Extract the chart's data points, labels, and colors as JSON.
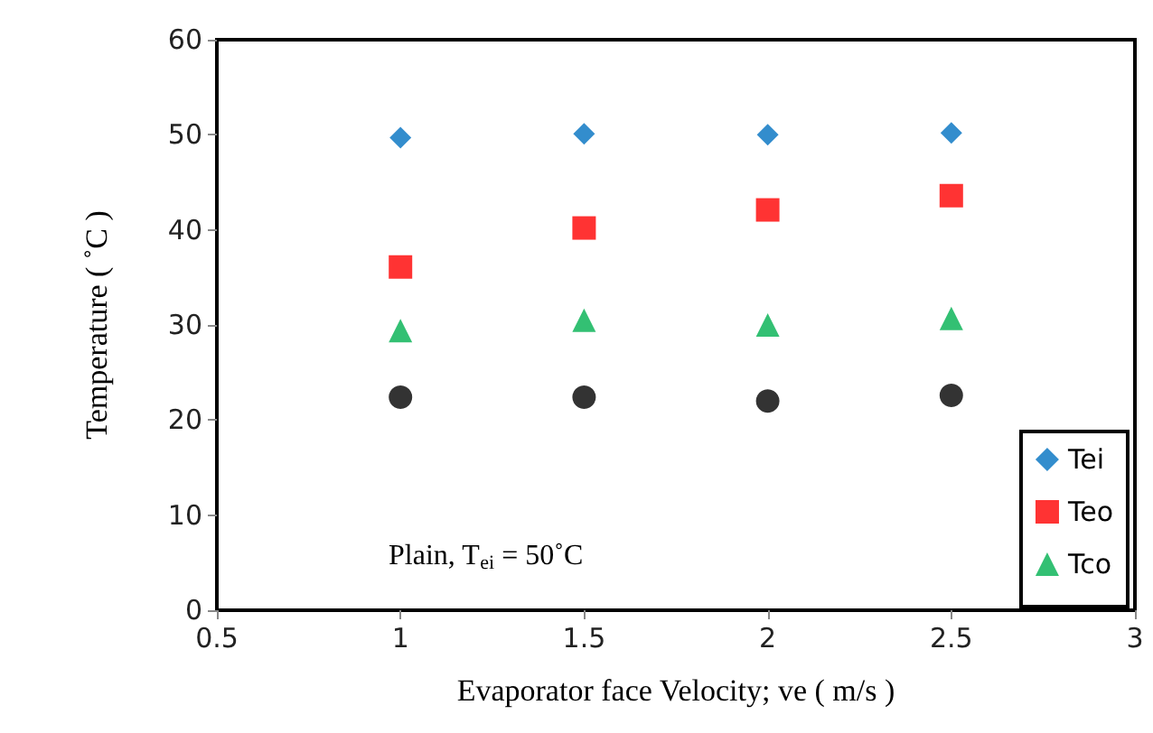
{
  "chart_data": {
    "type": "scatter",
    "xlabel": "Evaporator face Velocity; ve ( m/s )",
    "ylabel": "Temperature ( ˚C )",
    "x": [
      1,
      1.5,
      2,
      2.5
    ],
    "series": [
      {
        "name": "Tei",
        "color": "#0070c0",
        "marker": "diamond",
        "values": [
          49.7,
          50.1,
          50,
          50.2
        ]
      },
      {
        "name": "Teo",
        "color": "#ff0000",
        "marker": "square",
        "values": [
          36.1,
          40.2,
          42.1,
          43.6
        ]
      },
      {
        "name": "Tco",
        "color": "#00b050",
        "marker": "triangle",
        "values": [
          29.4,
          30.5,
          30,
          30.7
        ]
      },
      {
        "color": "#000000",
        "marker": "circle",
        "values": [
          22.4,
          22.4,
          22,
          22.6
        ]
      }
    ],
    "xlim": [
      0.5,
      3
    ],
    "xticks": [
      0.5,
      1,
      1.5,
      2,
      2.5,
      3
    ],
    "ylim": [
      0,
      60
    ],
    "yticks": [
      0,
      10,
      20,
      30,
      40,
      50,
      60
    ],
    "grid": false,
    "legend": "bottom right",
    "annotations": [
      "Plain, T$_{ei}$ = 50˚C"
    ]
  }
}
